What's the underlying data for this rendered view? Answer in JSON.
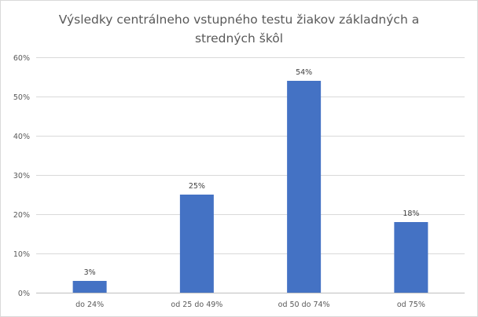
{
  "chart_data": {
    "type": "bar",
    "title_lines": [
      "Výsledky centrálneho vstupného testu žiakov základných a",
      "stredných škôl"
    ],
    "categories": [
      "do 24%",
      "od 25 do 49%",
      "od 50 do 74%",
      "od 75%"
    ],
    "values": [
      3,
      25,
      54,
      18
    ],
    "data_labels": [
      "3%",
      "25%",
      "54%",
      "18%"
    ],
    "y_ticks": [
      "0%",
      "10%",
      "20%",
      "30%",
      "40%",
      "50%",
      "60%"
    ],
    "ylim": [
      0,
      60
    ],
    "grid": true,
    "legend": "none",
    "bar_color": "#4472c4"
  }
}
